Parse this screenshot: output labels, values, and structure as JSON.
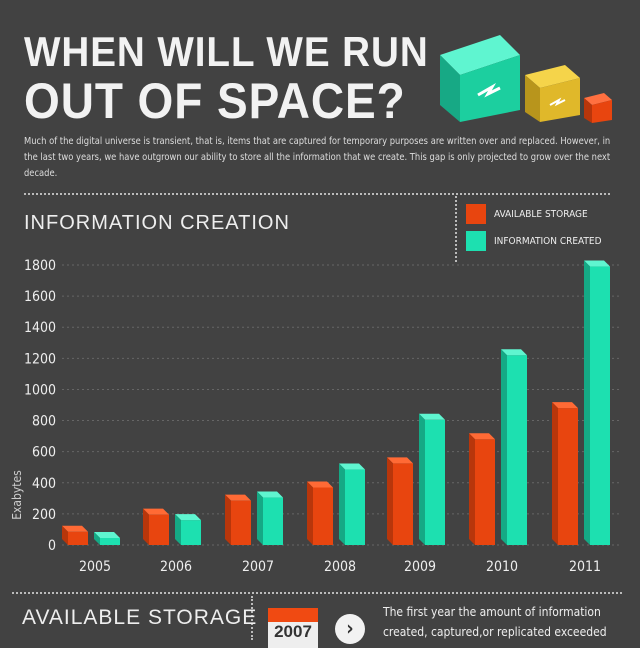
{
  "header": {
    "title_line1": "WHEN WILL WE RUN",
    "title_line2": "OUT OF SPACE?",
    "intro": "Much of the digital universe is transient, that is, items that are captured for temporary purposes are written over and replaced. However, in the last two years, we have outgrown our ability to store all the information that we create.  This gap is only projected to grow over the next decade."
  },
  "colors": {
    "storage": "#e8450f",
    "info": "#1de0b0",
    "background": "#424242"
  },
  "chart_data": {
    "type": "bar",
    "title": "INFORMATION CREATION",
    "ylabel": "Exabytes",
    "xlabel": "",
    "ylim": [
      0,
      1800
    ],
    "yticks": [
      "0",
      "200",
      "400",
      "600",
      "800",
      "1000",
      "1200",
      "1400",
      "1600",
      "1800"
    ],
    "categories": [
      "2005",
      "2006",
      "2007",
      "2008",
      "2009",
      "2010",
      "2011"
    ],
    "series": [
      {
        "name": "AVAILABLE STORAGE",
        "values": [
          85,
          195,
          285,
          370,
          525,
          680,
          880
        ]
      },
      {
        "name": "INFORMATION CREATED",
        "values": [
          45,
          160,
          305,
          485,
          805,
          1220,
          1790
        ]
      }
    ],
    "legend": "top-right",
    "grid": true
  },
  "section2": {
    "title": "AVAILABLE STORAGE",
    "year": "2007",
    "note": "The first year the amount of information created, captured,or replicated exceeded"
  }
}
